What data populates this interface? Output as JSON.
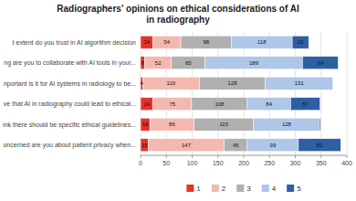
{
  "chart_data": {
    "type": "bar",
    "orientation": "horizontal",
    "stacked": true,
    "title": "Radiographers' opinions on ethical considerations of AI\nin radiography",
    "categories": [
      "t extent do you trust in AI algorithm decision",
      "ng are you to collaborate with AI tools in your...",
      "nportant is it for AI systems in radiology to be...",
      "ve that AI in radiography could lead to ethical...",
      "ink there should be specific ethical guidelines...",
      "oncerned are you about patient privacy when..."
    ],
    "series": [
      {
        "name": "1",
        "color": "#e63329",
        "values": [
          24,
          8,
          4,
          24,
          18,
          15
        ]
      },
      {
        "name": "2",
        "color": "#f4b8b0",
        "values": [
          54,
          52,
          110,
          75,
          86,
          147
        ]
      },
      {
        "name": "3",
        "color": "#b0b0b0",
        "values": [
          98,
          65,
          128,
          108,
          115,
          45
        ]
      },
      {
        "name": "4",
        "color": "#aec6e8",
        "values": [
          118,
          189,
          131,
          84,
          128,
          99
        ]
      },
      {
        "name": "5",
        "color": "#2e5fa3",
        "values": [
          32,
          69,
          0,
          57,
          2,
          82
        ],
        "value_labels": [
          "32",
          "69",
          null,
          "57",
          null,
          "82"
        ]
      }
    ],
    "xlim": [
      0,
      400
    ],
    "xticks": [
      0,
      50,
      100,
      150,
      200,
      250,
      300,
      350,
      400
    ],
    "grid": true,
    "legend": "bottom",
    "data_labels": true
  }
}
